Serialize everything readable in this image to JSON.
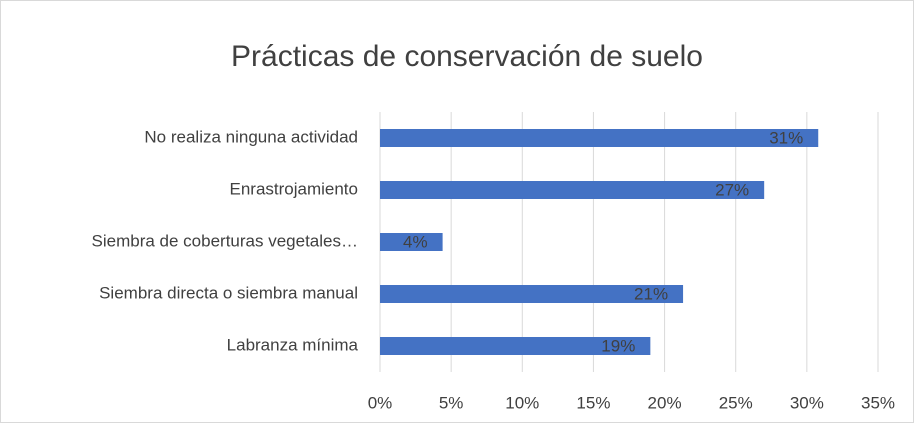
{
  "chart_data": {
    "type": "bar",
    "orientation": "horizontal",
    "title": "Prácticas de conservación de suelo",
    "categories": [
      "No realiza ninguna actividad",
      "Enrastrojamiento",
      "Siembra de coberturas vegetales…",
      "Siembra directa o siembra manual",
      "Labranza mínima"
    ],
    "values": [
      30.8,
      27,
      4.4,
      21.3,
      19
    ],
    "value_labels": [
      "31%",
      "27%",
      "4%",
      "21%",
      "19%"
    ],
    "color": "#4472c4",
    "xlim": [
      0,
      35
    ],
    "xticks": [
      {
        "value": 0,
        "label": "0%"
      },
      {
        "value": 5,
        "label": "5%"
      },
      {
        "value": 10,
        "label": "10%"
      },
      {
        "value": 15,
        "label": "15%"
      },
      {
        "value": 20,
        "label": "20%"
      },
      {
        "value": 25,
        "label": "25%"
      },
      {
        "value": 30,
        "label": "30%"
      },
      {
        "value": 35,
        "label": "35%"
      }
    ],
    "grid": true
  }
}
